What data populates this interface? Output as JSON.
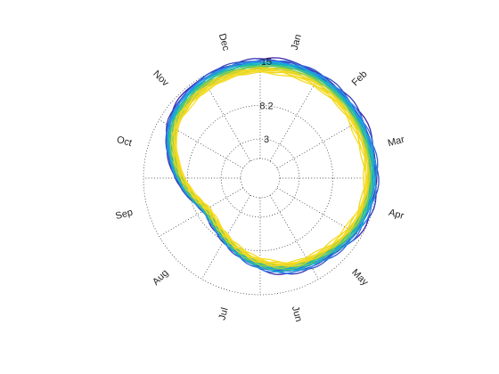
{
  "chart_data": {
    "type": "line",
    "projection": "polar",
    "title": "",
    "theta_direction": "clockwise",
    "theta_zero": "top",
    "month_labels": [
      "Jan",
      "Feb",
      "Mar",
      "Apr",
      "May",
      "Jun",
      "Jul",
      "Aug",
      "Sep",
      "Oct",
      "Nov",
      "Dec"
    ],
    "r_tick_labels": [
      "3",
      "8.2",
      "15"
    ],
    "r_ticks": [
      3,
      8.2,
      15
    ],
    "r_inner": 0,
    "r_outer": 15,
    "grid": "dotted",
    "colormap": "parula",
    "n_series": 26,
    "series_colors": [
      "#3e26a8",
      "#2c8bf4",
      "#0fb6c0",
      "#5cc866",
      "#e6d31f",
      "#fadd27"
    ],
    "profile": {
      "angle_deg": [
        0,
        20,
        40,
        60,
        80,
        100,
        120,
        140,
        160,
        180,
        200,
        220,
        240,
        260,
        280,
        300,
        320,
        340
      ],
      "value": [
        14.5,
        14.8,
        14.7,
        14.5,
        14.4,
        14.2,
        13.6,
        12.6,
        11.8,
        10.4,
        8.6,
        7.2,
        6.8,
        8.4,
        10.6,
        12.8,
        13.8,
        14.3
      ]
    }
  }
}
